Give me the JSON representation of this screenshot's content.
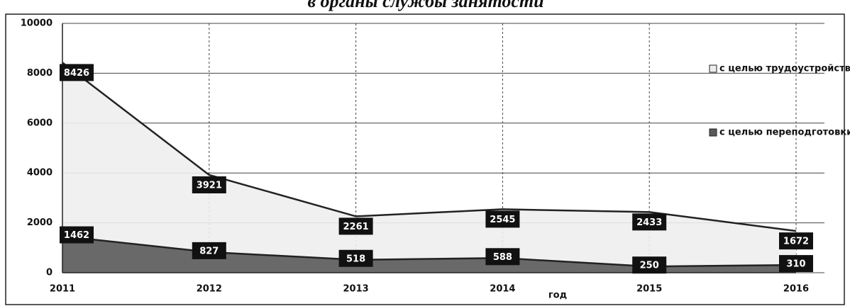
{
  "chart_data": {
    "type": "area",
    "title": "в органы службы занятости",
    "x_label": "год",
    "x": [
      2011,
      2012,
      2013,
      2014,
      2015,
      2016
    ],
    "xlim": [
      2011,
      2016
    ],
    "xticks": [
      2011,
      2012,
      2013,
      2014,
      2015,
      2016
    ],
    "ylim": [
      0,
      10000
    ],
    "yticks": [
      0,
      2000,
      4000,
      6000,
      8000,
      10000
    ],
    "grid": true,
    "legend": "right",
    "series": [
      {
        "name": "с целью трудоустройства",
        "color": "#eeeeee",
        "values": [
          8426,
          3921,
          2261,
          2545,
          2433,
          1672
        ]
      },
      {
        "name": "с целью переподготовки",
        "color": "#5a5a5a",
        "values": [
          1462,
          827,
          518,
          588,
          250,
          310
        ]
      }
    ]
  }
}
